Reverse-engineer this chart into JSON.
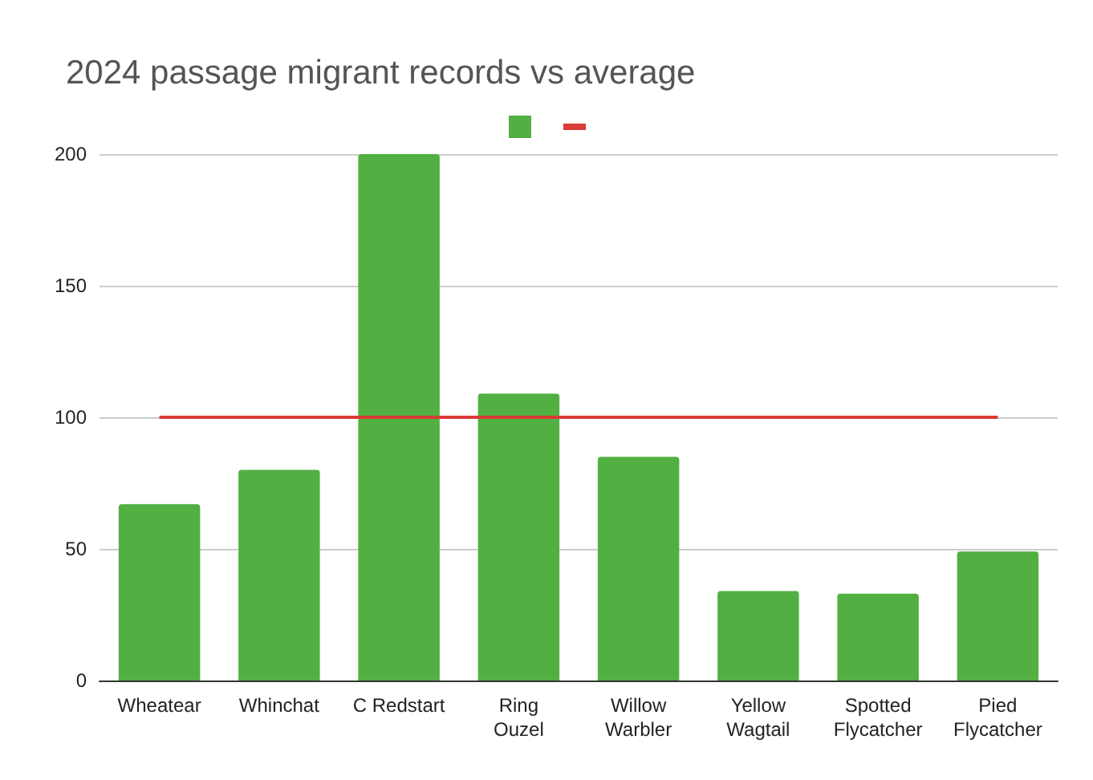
{
  "chart_data": {
    "type": "bar",
    "title": "2024 passage migrant records vs average",
    "categories": [
      "Wheatear",
      "Whinchat",
      "C Redstart",
      "Ring\nOuzel",
      "Willow\nWarbler",
      "Yellow\nWagtail",
      "Spotted\nFlycatcher",
      "Pied\nFlycatcher"
    ],
    "series": [
      {
        "color": "#52b043",
        "values": [
          67,
          80,
          200,
          109,
          85,
          34,
          33,
          49
        ]
      },
      {
        "type": "line",
        "color": "#d93b35",
        "values": [
          100,
          100,
          100,
          100,
          100,
          100,
          100,
          100
        ]
      }
    ],
    "ylim": [
      0,
      200
    ],
    "yticks": [
      0,
      50,
      100,
      150,
      200
    ],
    "grid": "y",
    "marker": "none"
  }
}
